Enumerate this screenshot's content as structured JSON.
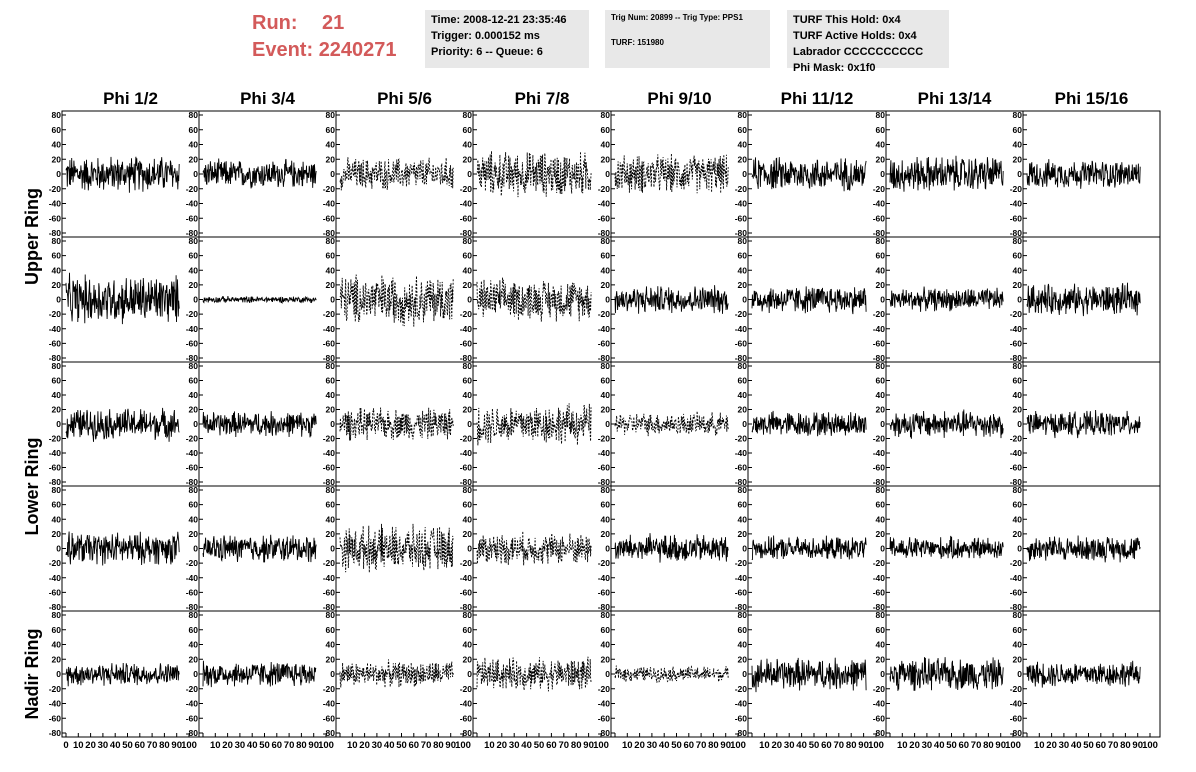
{
  "header": {
    "run_label": "Run:",
    "run_value": "21",
    "event_label": "Event:",
    "event_value": "2240271",
    "run_color": "#d35a5a"
  },
  "info_time": {
    "time": "Time: 2008-12-21 23:35:46",
    "trigger": "Trigger: 0.000152 ms",
    "priority": "Priority: 6 -- Queue: 6"
  },
  "info_trig": {
    "trig": "Trig Num: 20899 -- Trig Type: PPS1",
    "turf": "TURF: 151980"
  },
  "info_turf": {
    "this_hold": "TURF This Hold: 0x4",
    "active_holds": "TURF Active Holds: 0x4",
    "labrador": "Labrador CCCCCCCCCC",
    "phi_mask": "Phi Mask: 0x1f0"
  },
  "chart_data": {
    "type": "line",
    "columns": [
      "Phi 1/2",
      "Phi 3/4",
      "Phi 5/6",
      "Phi 7/8",
      "Phi 9/10",
      "Phi 11/12",
      "Phi 13/14",
      "Phi 15/16"
    ],
    "ring_labels": [
      "Upper Ring",
      "Lower Ring",
      "Nadir Ring"
    ],
    "rows": 5,
    "x_range": [
      0,
      100
    ],
    "y_range": [
      -80,
      80
    ],
    "x_ticks": [
      0,
      10,
      20,
      30,
      40,
      50,
      60,
      70,
      80,
      90,
      100
    ],
    "y_ticks": [
      -80,
      -60,
      -40,
      -20,
      0,
      20,
      40,
      60,
      80
    ],
    "samples_per_trace": 260,
    "trace_amplitude": [
      [
        28,
        22,
        25,
        35,
        30,
        26,
        28,
        22
      ],
      [
        38,
        5,
        40,
        32,
        22,
        22,
        18,
        24
      ],
      [
        25,
        20,
        25,
        32,
        18,
        20,
        22,
        20
      ],
      [
        25,
        22,
        35,
        25,
        22,
        18,
        18,
        20
      ],
      [
        18,
        20,
        20,
        25,
        12,
        25,
        25,
        20
      ]
    ],
    "trace_style": [
      [
        "solid",
        "solid",
        "dashed",
        "dashed",
        "dashed",
        "solid",
        "solid",
        "solid"
      ],
      [
        "solid",
        "solid",
        "dashed",
        "dashed",
        "solid",
        "solid",
        "solid",
        "solid"
      ],
      [
        "solid",
        "solid",
        "dashed",
        "dashed",
        "dashed",
        "solid",
        "solid",
        "solid"
      ],
      [
        "solid",
        "solid",
        "dashed",
        "dashed",
        "solid",
        "solid",
        "solid",
        "solid"
      ],
      [
        "solid",
        "solid",
        "dashed",
        "dashed",
        "dashed",
        "solid",
        "solid",
        "solid"
      ]
    ],
    "line_color": "#000000",
    "grid": false
  }
}
